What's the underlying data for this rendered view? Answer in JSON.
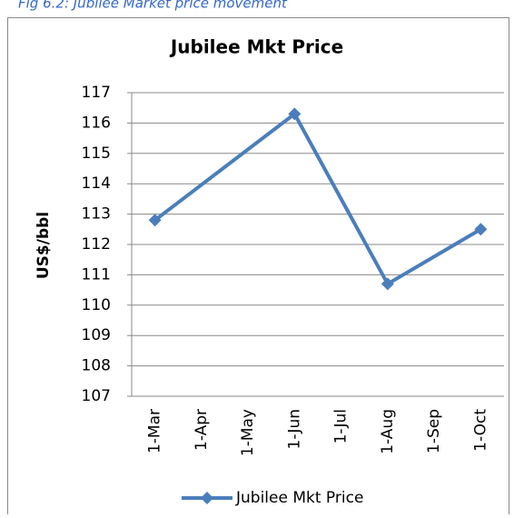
{
  "caption": "Fig 6.2: Jubilee Market price movement",
  "chart_data": {
    "type": "line",
    "title": "Jubilee Mkt Price",
    "y_label": "US$/bbl",
    "categories": [
      "1-Mar",
      "1-Apr",
      "1-May",
      "1-Jun",
      "1-Jul",
      "1-Aug",
      "1-Sep",
      "1-Oct"
    ],
    "series": [
      {
        "name": "Jubilee Mkt Price",
        "color": "#4a7ebb",
        "values": [
          112.8,
          null,
          null,
          116.3,
          null,
          110.7,
          null,
          112.5
        ]
      }
    ],
    "span_gaps": true,
    "ylim": [
      107,
      117
    ],
    "yticks": [
      107,
      108,
      109,
      110,
      111,
      112,
      113,
      114,
      115,
      116,
      117
    ],
    "grid": true,
    "legend": "bottom"
  }
}
